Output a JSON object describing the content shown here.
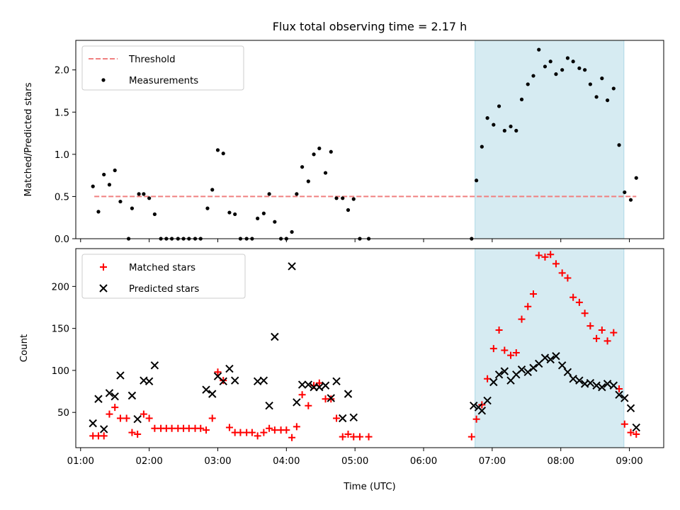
{
  "chart_data": {
    "title": "Flux total observing time = 2.17 h",
    "xlabel": "Time (UTC)",
    "x_unit": "hours UTC",
    "xlim": [
      0.93,
      9.5
    ],
    "x_ticks": [
      1,
      2,
      3,
      4,
      5,
      6,
      7,
      8,
      9
    ],
    "x_tick_labels": [
      "01:00",
      "02:00",
      "03:00",
      "04:00",
      "05:00",
      "06:00",
      "07:00",
      "08:00",
      "09:00"
    ],
    "shaded_region": {
      "x": [
        6.75,
        8.92
      ],
      "color": "#add8e6"
    },
    "panels": [
      {
        "type": "scatter",
        "ylabel": "Matched/Predicted stars",
        "ylim": [
          0,
          2.35
        ],
        "y_ticks": [
          0,
          0.5,
          1,
          1.5,
          2
        ],
        "y_tick_labels": [
          "0.0",
          "0.5",
          "1.0",
          "1.5",
          "2.0"
        ],
        "legend_position": "top-left",
        "series": [
          {
            "name": "Threshold",
            "kind": "line",
            "style": "dashed",
            "color": "#f08080",
            "x": [
              1.2,
              9.1
            ],
            "y": [
              0.5,
              0.5
            ]
          },
          {
            "name": "Measurements",
            "kind": "scatter",
            "marker": "dot",
            "color": "#000000",
            "points": [
              [
                1.18,
                0.62
              ],
              [
                1.26,
                0.32
              ],
              [
                1.34,
                0.76
              ],
              [
                1.42,
                0.64
              ],
              [
                1.5,
                0.81
              ],
              [
                1.58,
                0.44
              ],
              [
                1.7,
                0.0
              ],
              [
                1.75,
                0.36
              ],
              [
                1.85,
                0.53
              ],
              [
                1.92,
                0.53
              ],
              [
                2.0,
                0.48
              ],
              [
                2.08,
                0.29
              ],
              [
                2.17,
                0.0
              ],
              [
                2.25,
                0.0
              ],
              [
                2.33,
                0.0
              ],
              [
                2.42,
                0.0
              ],
              [
                2.5,
                0.0
              ],
              [
                2.58,
                0.0
              ],
              [
                2.67,
                0.0
              ],
              [
                2.75,
                0.0
              ],
              [
                2.85,
                0.36
              ],
              [
                2.92,
                0.58
              ],
              [
                3.0,
                1.05
              ],
              [
                3.08,
                1.01
              ],
              [
                3.17,
                0.31
              ],
              [
                3.25,
                0.29
              ],
              [
                3.33,
                0.0
              ],
              [
                3.42,
                0.0
              ],
              [
                3.5,
                0.0
              ],
              [
                3.58,
                0.24
              ],
              [
                3.67,
                0.3
              ],
              [
                3.75,
                0.53
              ],
              [
                3.83,
                0.2
              ],
              [
                3.92,
                0.0
              ],
              [
                4.0,
                0.0
              ],
              [
                4.08,
                0.08
              ],
              [
                4.15,
                0.53
              ],
              [
                4.23,
                0.85
              ],
              [
                4.32,
                0.68
              ],
              [
                4.4,
                1.0
              ],
              [
                4.48,
                1.07
              ],
              [
                4.57,
                0.78
              ],
              [
                4.65,
                1.03
              ],
              [
                4.73,
                0.48
              ],
              [
                4.82,
                0.48
              ],
              [
                4.9,
                0.34
              ],
              [
                4.98,
                0.47
              ],
              [
                5.07,
                0.0
              ],
              [
                5.2,
                0.0
              ],
              [
                6.7,
                0.0
              ],
              [
                6.77,
                0.69
              ],
              [
                6.85,
                1.09
              ],
              [
                6.93,
                1.43
              ],
              [
                7.02,
                1.35
              ],
              [
                7.1,
                1.57
              ],
              [
                7.18,
                1.28
              ],
              [
                7.27,
                1.33
              ],
              [
                7.35,
                1.28
              ],
              [
                7.43,
                1.65
              ],
              [
                7.52,
                1.83
              ],
              [
                7.6,
                1.93
              ],
              [
                7.68,
                2.24
              ],
              [
                7.77,
                2.04
              ],
              [
                7.85,
                2.1
              ],
              [
                7.93,
                1.95
              ],
              [
                8.02,
                2.0
              ],
              [
                8.1,
                2.14
              ],
              [
                8.18,
                2.1
              ],
              [
                8.27,
                2.02
              ],
              [
                8.35,
                2.0
              ],
              [
                8.43,
                1.83
              ],
              [
                8.52,
                1.68
              ],
              [
                8.6,
                1.9
              ],
              [
                8.68,
                1.64
              ],
              [
                8.77,
                1.78
              ],
              [
                8.85,
                1.11
              ],
              [
                8.93,
                0.55
              ],
              [
                9.02,
                0.46
              ],
              [
                9.1,
                0.72
              ]
            ]
          }
        ]
      },
      {
        "type": "scatter",
        "ylabel": "Count",
        "ylim": [
          8,
          245
        ],
        "y_ticks": [
          50,
          100,
          150,
          200
        ],
        "y_tick_labels": [
          "50",
          "100",
          "150",
          "200"
        ],
        "legend_position": "top-left",
        "series": [
          {
            "name": "Matched stars",
            "kind": "scatter",
            "marker": "plus",
            "color": "#ff0000",
            "points": [
              [
                1.18,
                22
              ],
              [
                1.26,
                22
              ],
              [
                1.34,
                22
              ],
              [
                1.42,
                48
              ],
              [
                1.5,
                56
              ],
              [
                1.58,
                43
              ],
              [
                1.67,
                43
              ],
              [
                1.75,
                26
              ],
              [
                1.83,
                24
              ],
              [
                1.92,
                48
              ],
              [
                2.0,
                43
              ],
              [
                2.08,
                31
              ],
              [
                2.17,
                31
              ],
              [
                2.25,
                31
              ],
              [
                2.33,
                31
              ],
              [
                2.42,
                31
              ],
              [
                2.5,
                31
              ],
              [
                2.58,
                31
              ],
              [
                2.67,
                31
              ],
              [
                2.75,
                31
              ],
              [
                2.83,
                29
              ],
              [
                2.92,
                43
              ],
              [
                3.0,
                98
              ],
              [
                3.08,
                88
              ],
              [
                3.17,
                32
              ],
              [
                3.25,
                26
              ],
              [
                3.33,
                26
              ],
              [
                3.42,
                26
              ],
              [
                3.5,
                26
              ],
              [
                3.58,
                22
              ],
              [
                3.67,
                26
              ],
              [
                3.75,
                31
              ],
              [
                3.83,
                29
              ],
              [
                3.92,
                29
              ],
              [
                4.0,
                29
              ],
              [
                4.08,
                20
              ],
              [
                4.15,
                33
              ],
              [
                4.23,
                71
              ],
              [
                4.32,
                58
              ],
              [
                4.4,
                82
              ],
              [
                4.48,
                85
              ],
              [
                4.57,
                66
              ],
              [
                4.65,
                66
              ],
              [
                4.73,
                43
              ],
              [
                4.82,
                21
              ],
              [
                4.9,
                24
              ],
              [
                4.98,
                21
              ],
              [
                5.07,
                21
              ],
              [
                5.2,
                21
              ],
              [
                6.7,
                21
              ],
              [
                6.77,
                42
              ],
              [
                6.85,
                59
              ],
              [
                6.93,
                90
              ],
              [
                7.02,
                126
              ],
              [
                7.1,
                148
              ],
              [
                7.18,
                124
              ],
              [
                7.27,
                118
              ],
              [
                7.35,
                121
              ],
              [
                7.43,
                161
              ],
              [
                7.52,
                176
              ],
              [
                7.6,
                191
              ],
              [
                7.68,
                237
              ],
              [
                7.77,
                235
              ],
              [
                7.85,
                238
              ],
              [
                7.93,
                227
              ],
              [
                8.02,
                216
              ],
              [
                8.1,
                210
              ],
              [
                8.18,
                187
              ],
              [
                8.27,
                181
              ],
              [
                8.35,
                168
              ],
              [
                8.43,
                153
              ],
              [
                8.52,
                138
              ],
              [
                8.6,
                148
              ],
              [
                8.68,
                135
              ],
              [
                8.77,
                145
              ],
              [
                8.85,
                78
              ],
              [
                8.93,
                36
              ],
              [
                9.02,
                26
              ],
              [
                9.1,
                24
              ]
            ]
          },
          {
            "name": "Predicted stars",
            "kind": "scatter",
            "marker": "x",
            "color": "#000000",
            "points": [
              [
                1.18,
                37
              ],
              [
                1.26,
                66
              ],
              [
                1.34,
                30
              ],
              [
                1.42,
                73
              ],
              [
                1.5,
                69
              ],
              [
                1.58,
                94
              ],
              [
                1.75,
                70
              ],
              [
                1.83,
                42
              ],
              [
                1.92,
                88
              ],
              [
                2.0,
                87
              ],
              [
                2.08,
                106
              ],
              [
                2.83,
                77
              ],
              [
                2.92,
                72
              ],
              [
                3.0,
                93
              ],
              [
                3.08,
                87
              ],
              [
                3.17,
                102
              ],
              [
                3.25,
                88
              ],
              [
                3.58,
                87
              ],
              [
                3.67,
                88
              ],
              [
                3.75,
                58
              ],
              [
                3.83,
                140
              ],
              [
                4.08,
                224
              ],
              [
                4.15,
                62
              ],
              [
                4.23,
                83
              ],
              [
                4.32,
                83
              ],
              [
                4.4,
                80
              ],
              [
                4.48,
                80
              ],
              [
                4.57,
                82
              ],
              [
                4.65,
                67
              ],
              [
                4.73,
                87
              ],
              [
                4.82,
                43
              ],
              [
                4.9,
                72
              ],
              [
                4.98,
                44
              ],
              [
                6.73,
                58
              ],
              [
                6.8,
                56
              ],
              [
                6.85,
                52
              ],
              [
                6.93,
                64
              ],
              [
                7.02,
                86
              ],
              [
                7.1,
                95
              ],
              [
                7.18,
                99
              ],
              [
                7.27,
                88
              ],
              [
                7.35,
                95
              ],
              [
                7.43,
                101
              ],
              [
                7.52,
                98
              ],
              [
                7.6,
                103
              ],
              [
                7.68,
                108
              ],
              [
                7.77,
                115
              ],
              [
                7.85,
                113
              ],
              [
                7.93,
                117
              ],
              [
                8.02,
                106
              ],
              [
                8.1,
                98
              ],
              [
                8.18,
                90
              ],
              [
                8.27,
                88
              ],
              [
                8.35,
                84
              ],
              [
                8.43,
                85
              ],
              [
                8.52,
                82
              ],
              [
                8.6,
                80
              ],
              [
                8.68,
                84
              ],
              [
                8.77,
                82
              ],
              [
                8.85,
                71
              ],
              [
                8.93,
                67
              ],
              [
                9.02,
                55
              ],
              [
                9.1,
                32
              ]
            ]
          }
        ]
      }
    ]
  }
}
